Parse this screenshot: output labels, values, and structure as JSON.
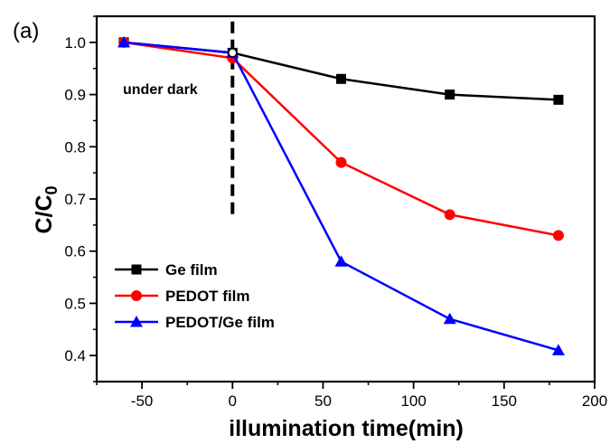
{
  "chart_data": {
    "type": "line",
    "panel_label": "(a)",
    "xlabel": "illumination time(min)",
    "ylabel": {
      "main": "C/C",
      "subscript": "0"
    },
    "xlim": [
      -75,
      200
    ],
    "ylim": [
      0.35,
      1.05
    ],
    "xticks": [
      -50,
      0,
      50,
      100,
      150,
      200
    ],
    "yticks": [
      0.4,
      0.5,
      0.6,
      0.7,
      0.8,
      0.9,
      1.0
    ],
    "xtick_labels": [
      "-50",
      "0",
      "50",
      "100",
      "150",
      "200"
    ],
    "ytick_labels": [
      "0.4",
      "0.5",
      "0.6",
      "0.7",
      "0.8",
      "0.9",
      "1.0"
    ],
    "grid": false,
    "legend_position": "bottom-left",
    "annotation": {
      "text": "under dark",
      "divider_x": 0
    },
    "series": [
      {
        "name": "Ge film",
        "color": "#000000",
        "marker": "square",
        "x": [
          -60,
          0,
          60,
          120,
          180
        ],
        "y": [
          1.0,
          0.98,
          0.93,
          0.9,
          0.89
        ]
      },
      {
        "name": "PEDOT film",
        "color": "#ff0000",
        "marker": "circle",
        "x": [
          -60,
          0,
          60,
          120,
          180
        ],
        "y": [
          1.0,
          0.97,
          0.77,
          0.67,
          0.63
        ]
      },
      {
        "name": "PEDOT/Ge film",
        "color": "#0000ff",
        "marker": "triangle",
        "x": [
          -60,
          0,
          60,
          120,
          180
        ],
        "y": [
          1.0,
          0.98,
          0.58,
          0.47,
          0.41
        ]
      }
    ]
  }
}
